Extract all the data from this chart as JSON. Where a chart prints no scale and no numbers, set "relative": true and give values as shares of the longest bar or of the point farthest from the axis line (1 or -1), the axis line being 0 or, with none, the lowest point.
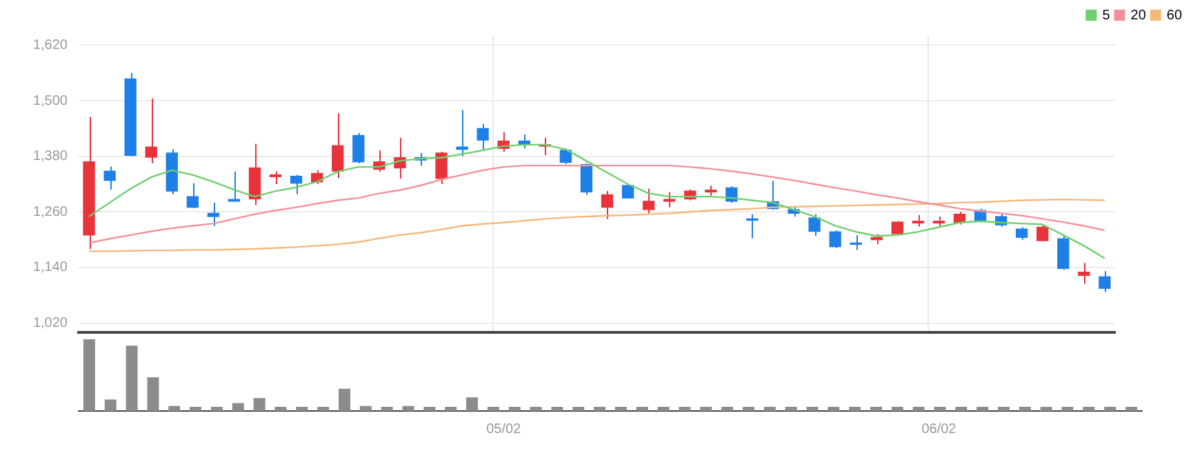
{
  "chart_data": [
    {
      "type": "candlestick",
      "categories": [
        null,
        null,
        null,
        null,
        null,
        null,
        null,
        null,
        null,
        null,
        null,
        null,
        null,
        null,
        null,
        null,
        null,
        null,
        null,
        null,
        "05/02",
        null,
        null,
        null,
        null,
        null,
        null,
        null,
        null,
        null,
        null,
        null,
        null,
        null,
        null,
        null,
        null,
        null,
        null,
        null,
        null,
        "06/02",
        null,
        null,
        null,
        null,
        null,
        null,
        null,
        null
      ],
      "ohlc": [
        [
          1210,
          1465,
          1180,
          1368
        ],
        [
          1348,
          1358,
          1308,
          1328
        ],
        [
          1547,
          1560,
          1380,
          1382
        ],
        [
          1378,
          1505,
          1365,
          1400
        ],
        [
          1387,
          1395,
          1298,
          1305
        ],
        [
          1293,
          1322,
          1268,
          1270
        ],
        [
          1257,
          1280,
          1230,
          1250
        ],
        [
          1287,
          1347,
          1283,
          1283
        ],
        [
          1288,
          1407,
          1275,
          1355
        ],
        [
          1336,
          1347,
          1320,
          1340
        ],
        [
          1337,
          1340,
          1298,
          1322
        ],
        [
          1325,
          1350,
          1320,
          1343
        ],
        [
          1348,
          1473,
          1333,
          1403
        ],
        [
          1425,
          1430,
          1365,
          1368
        ],
        [
          1352,
          1393,
          1347,
          1368
        ],
        [
          1355,
          1420,
          1332,
          1377
        ],
        [
          1377,
          1387,
          1360,
          1372
        ],
        [
          1332,
          1390,
          1320,
          1387
        ],
        [
          1400,
          1480,
          1380,
          1395
        ],
        [
          1440,
          1450,
          1393,
          1415
        ],
        [
          1397,
          1432,
          1390,
          1413
        ],
        [
          1413,
          1427,
          1397,
          1405
        ],
        [
          1402,
          1420,
          1383,
          1405
        ],
        [
          1393,
          1397,
          1363,
          1367
        ],
        [
          1362,
          1365,
          1297,
          1303
        ],
        [
          1270,
          1305,
          1245,
          1297
        ],
        [
          1317,
          1317,
          1290,
          1290
        ],
        [
          1265,
          1310,
          1257,
          1283
        ],
        [
          1283,
          1303,
          1270,
          1287
        ],
        [
          1288,
          1308,
          1285,
          1305
        ],
        [
          1303,
          1317,
          1295,
          1307
        ],
        [
          1312,
          1315,
          1280,
          1283
        ],
        [
          1245,
          1255,
          1203,
          1242
        ],
        [
          1282,
          1327,
          1265,
          1267
        ],
        [
          1265,
          1270,
          1250,
          1257
        ],
        [
          1247,
          1255,
          1208,
          1218
        ],
        [
          1217,
          1220,
          1182,
          1185
        ],
        [
          1193,
          1210,
          1178,
          1190
        ],
        [
          1200,
          1212,
          1190,
          1205
        ],
        [
          1213,
          1240,
          1210,
          1238
        ],
        [
          1236,
          1253,
          1228,
          1240
        ],
        [
          1236,
          1250,
          1228,
          1240
        ],
        [
          1237,
          1260,
          1233,
          1255
        ],
        [
          1263,
          1267,
          1237,
          1240
        ],
        [
          1250,
          1255,
          1228,
          1232
        ],
        [
          1223,
          1227,
          1200,
          1205
        ],
        [
          1198,
          1233,
          1197,
          1227
        ],
        [
          1202,
          1210,
          1135,
          1138
        ],
        [
          1123,
          1150,
          1105,
          1130
        ],
        [
          1120,
          1132,
          1087,
          1095
        ]
      ],
      "colors": [
        "#e8333a",
        "#1e7fe6",
        "#1e7fe6",
        "#e8333a",
        "#1e7fe6",
        "#1e7fe6",
        "#1e7fe6",
        "#1e7fe6",
        "#e8333a",
        "#e8333a",
        "#1e7fe6",
        "#e8333a",
        "#e8333a",
        "#1e7fe6",
        "#e8333a",
        "#e8333a",
        "#1e7fe6",
        "#e8333a",
        "#1e7fe6",
        "#1e7fe6",
        "#e8333a",
        "#1e7fe6",
        "#e8333a",
        "#1e7fe6",
        "#1e7fe6",
        "#e8333a",
        "#1e7fe6",
        "#e8333a",
        "#e8333a",
        "#e8333a",
        "#e8333a",
        "#1e7fe6",
        "#1e7fe6",
        "#1e7fe6",
        "#1e7fe6",
        "#1e7fe6",
        "#1e7fe6",
        "#1e7fe6",
        "#e8333a",
        "#e8333a",
        "#e8333a",
        "#e8333a",
        "#e8333a",
        "#1e7fe6",
        "#1e7fe6",
        "#1e7fe6",
        "#e8333a",
        "#1e7fe6",
        "#e8333a",
        "#1e7fe6"
      ],
      "series": [
        {
          "name": "5",
          "type": "line",
          "color": "#6fcf6f",
          "values": [
            1250,
            1280,
            1310,
            1335,
            1350,
            1340,
            1325,
            1308,
            1293,
            1305,
            1313,
            1325,
            1347,
            1357,
            1357,
            1370,
            1375,
            1377,
            1385,
            1393,
            1402,
            1405,
            1405,
            1395,
            1370,
            1345,
            1320,
            1300,
            1293,
            1293,
            1293,
            1290,
            1285,
            1280,
            1265,
            1250,
            1230,
            1217,
            1208,
            1210,
            1217,
            1227,
            1237,
            1240,
            1237,
            1235,
            1233,
            1210,
            1187,
            1160
          ]
        },
        {
          "name": "20",
          "type": "line",
          "color": "#f39198",
          "values": [
            1193,
            1202,
            1210,
            1218,
            1225,
            1230,
            1235,
            1245,
            1255,
            1263,
            1270,
            1278,
            1285,
            1290,
            1300,
            1307,
            1317,
            1330,
            1340,
            1350,
            1357,
            1360,
            1360,
            1360,
            1360,
            1360,
            1360,
            1360,
            1360,
            1357,
            1353,
            1348,
            1342,
            1335,
            1328,
            1320,
            1312,
            1305,
            1297,
            1290,
            1282,
            1275,
            1267,
            1262,
            1257,
            1252,
            1245,
            1238,
            1230,
            1220
          ]
        },
        {
          "name": "60",
          "type": "line",
          "color": "#f5b77a",
          "values": [
            1175,
            1175,
            1176,
            1177,
            1177,
            1178,
            1178,
            1179,
            1180,
            1182,
            1184,
            1187,
            1190,
            1195,
            1203,
            1210,
            1215,
            1222,
            1230,
            1234,
            1237,
            1241,
            1245,
            1248,
            1250,
            1252,
            1253,
            1255,
            1257,
            1260,
            1263,
            1265,
            1267,
            1270,
            1271,
            1272,
            1273,
            1274,
            1275,
            1276,
            1277,
            1278,
            1280,
            1281,
            1283,
            1285,
            1286,
            1287,
            1286,
            1285
          ]
        }
      ],
      "ylim": [
        1000,
        1640
      ],
      "yticks": [
        {
          "value": 1020,
          "label": "1,020"
        },
        {
          "value": 1140,
          "label": "1,140"
        },
        {
          "value": 1260,
          "label": "1,260"
        },
        {
          "value": 1380,
          "label": "1,380"
        },
        {
          "value": 1500,
          "label": "1,500"
        },
        {
          "value": 1620,
          "label": "1,620"
        }
      ],
      "grid": true,
      "legend": "top right",
      "marker": "none"
    },
    {
      "type": "bar",
      "relative": true,
      "categories": [
        null,
        null,
        null,
        null,
        null,
        null,
        null,
        null,
        null,
        null,
        null,
        null,
        null,
        null,
        null,
        null,
        null,
        null,
        null,
        null,
        null,
        null,
        null,
        null,
        null,
        null,
        null,
        null,
        null,
        null,
        null,
        null,
        null,
        null,
        null,
        null,
        null,
        null,
        null,
        null,
        null,
        null,
        null,
        null,
        null,
        null,
        null,
        null,
        null,
        null
      ],
      "color": "#8c8c8c",
      "values": [
        1,
        0.16,
        0.91,
        0.47,
        0.07,
        0.04,
        0.04,
        0.11,
        0.18,
        0.03,
        0.03,
        0.04,
        0.31,
        0.07,
        0.04,
        0.07,
        0.03,
        0.04,
        0.19,
        0.04,
        0.04,
        0.03,
        0.04,
        0.03,
        0.03,
        0.03,
        0.03,
        0.03,
        0.03,
        0.03,
        0.03,
        0.03,
        0.03,
        0.05,
        0.03,
        0.03,
        0.03,
        0.03,
        0.03,
        0.03,
        0.03,
        0.03,
        0.03,
        0.03,
        0.03,
        0.03,
        0.03,
        0.03,
        0.03,
        0.04
      ]
    }
  ]
}
